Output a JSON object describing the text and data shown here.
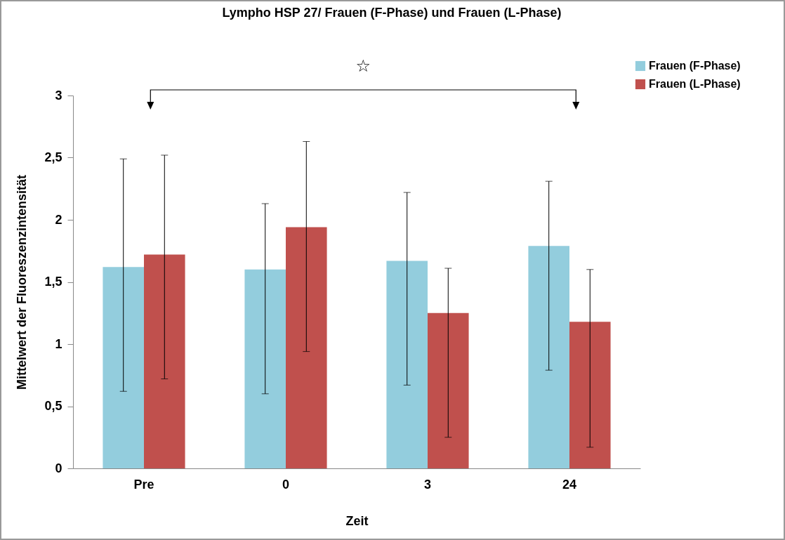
{
  "chart_data": {
    "type": "bar",
    "title": "Lympho HSP 27/ Frauen (F-Phase) und Frauen (L-Phase)",
    "xlabel": "Zeit",
    "ylabel": "Mittelwert der Fluoreszenzintensität",
    "categories": [
      "Pre",
      "0",
      "3",
      "24"
    ],
    "series": [
      {
        "name": "Frauen (F-Phase)",
        "color": "#93cddd",
        "values": [
          1.62,
          1.6,
          1.67,
          1.79
        ],
        "errors": [
          [
            0.62,
            2.49
          ],
          [
            0.6,
            2.13
          ],
          [
            0.67,
            2.22
          ],
          [
            0.79,
            2.31
          ]
        ]
      },
      {
        "name": "Frauen (L-Phase)",
        "color": "#c0504d",
        "values": [
          1.72,
          1.94,
          1.25,
          1.18
        ],
        "errors": [
          [
            0.72,
            2.52
          ],
          [
            0.94,
            2.63
          ],
          [
            0.25,
            1.61
          ],
          [
            0.17,
            1.6
          ]
        ]
      }
    ],
    "ylim": [
      0,
      3
    ],
    "yticks": [
      0,
      {
        "value": 0.5,
        "label": "0,5"
      },
      1,
      {
        "value": 1.5,
        "label": "1,5"
      },
      2,
      {
        "value": 2.5,
        "label": "2,5"
      },
      3
    ],
    "grid": false,
    "legend": "top right",
    "annotations": [
      "☆"
    ]
  }
}
